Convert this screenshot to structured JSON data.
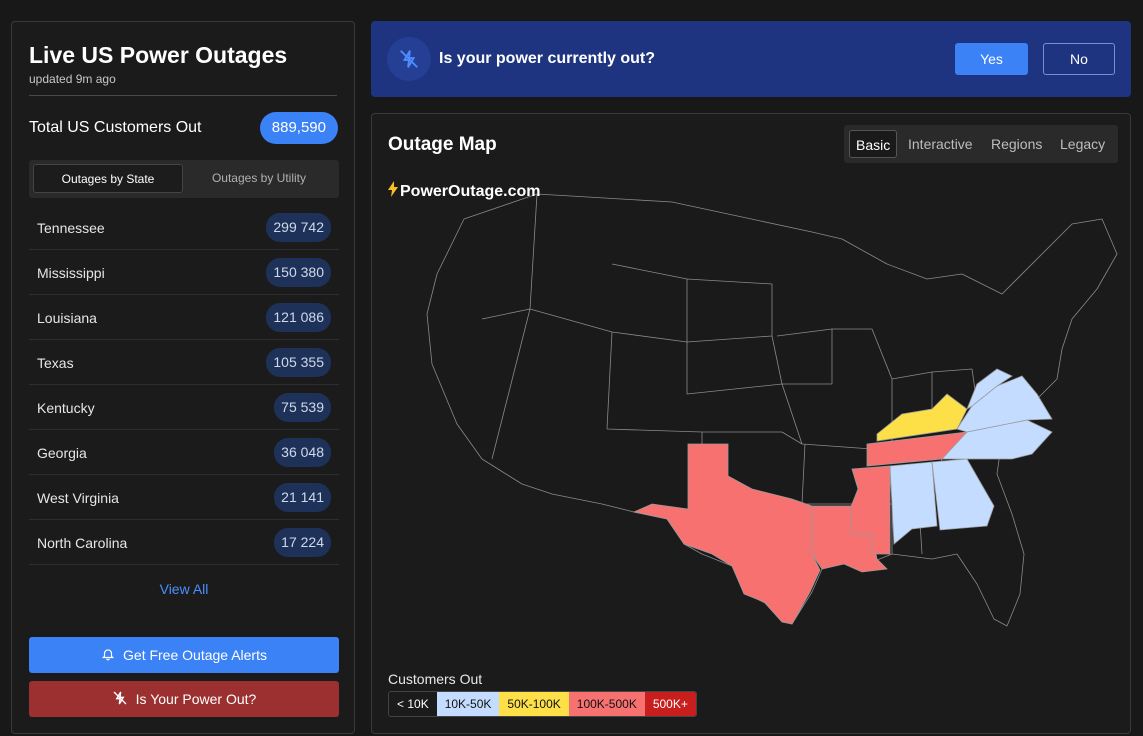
{
  "sidebar": {
    "title": "Live US Power Outages",
    "updated": "updated 9m ago",
    "total_label": "Total US Customers Out",
    "total_value": "889,590",
    "tabs": [
      "Outages by State",
      "Outages by Utility"
    ],
    "states": [
      {
        "name": "Tennessee",
        "count": "299 742"
      },
      {
        "name": "Mississippi",
        "count": "150 380"
      },
      {
        "name": "Louisiana",
        "count": "121 086"
      },
      {
        "name": "Texas",
        "count": "105 355"
      },
      {
        "name": "Kentucky",
        "count": "75 539"
      },
      {
        "name": "Georgia",
        "count": "36 048"
      },
      {
        "name": "West Virginia",
        "count": "21 141"
      },
      {
        "name": "North Carolina",
        "count": "17 224"
      }
    ],
    "view_all": "View All",
    "alerts_button": "Get Free Outage Alerts",
    "power_out_button": "Is Your Power Out?"
  },
  "banner": {
    "question": "Is your power currently out?",
    "yes": "Yes",
    "no": "No"
  },
  "map": {
    "title": "Outage Map",
    "tabs": [
      "Basic",
      "Interactive",
      "Regions",
      "Legacy"
    ],
    "brand": "PowerOutage.com",
    "legend_title": "Customers Out",
    "legend": [
      {
        "label": "< 10K",
        "color": "#1b1b1b",
        "text": "#ffffff"
      },
      {
        "label": "10K-50K",
        "color": "#c4dcff",
        "text": "#111111"
      },
      {
        "label": "50K-100K",
        "color": "#fde047",
        "text": "#111111"
      },
      {
        "label": "100K-500K",
        "color": "#f87171",
        "text": "#111111"
      },
      {
        "label": "500K+",
        "color": "#c81e1e",
        "text": "#ffffff"
      }
    ]
  },
  "colors": {
    "accent": "#3b82f6",
    "danger_button": "#9c2f2f",
    "banner": "#1e3480",
    "tier_10k_50k": "#c4dcff",
    "tier_50k_100k": "#fde047",
    "tier_100k_500k": "#f87171"
  }
}
